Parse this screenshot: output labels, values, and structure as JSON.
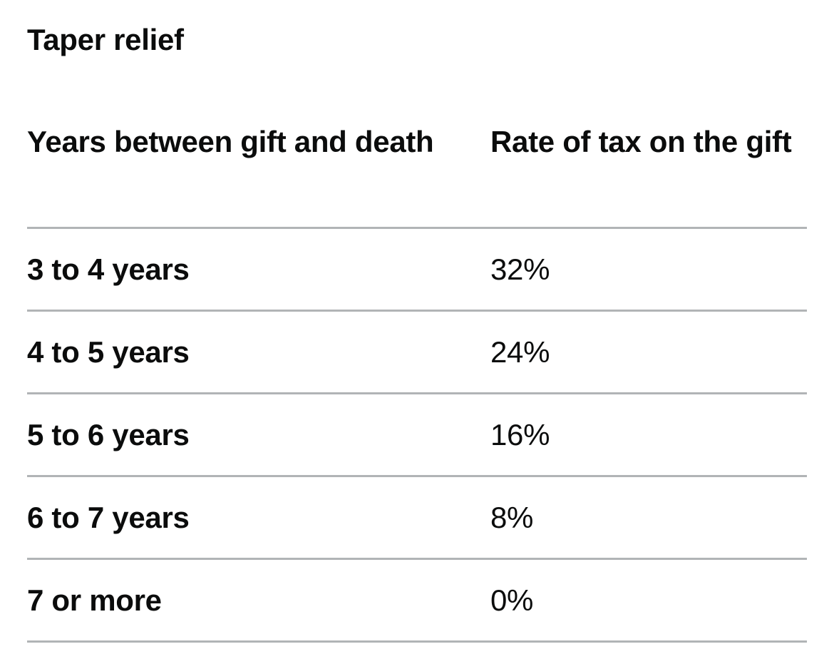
{
  "title": "Taper relief",
  "table": {
    "headers": [
      "Years between gift and death",
      "Rate of tax on the gift"
    ],
    "rows": [
      {
        "period": "3 to 4 years",
        "rate": "32%"
      },
      {
        "period": "4 to 5 years",
        "rate": "24%"
      },
      {
        "period": "5 to 6 years",
        "rate": "16%"
      },
      {
        "period": "6 to 7 years",
        "rate": "8%"
      },
      {
        "period": "7 or more",
        "rate": "0%"
      }
    ]
  },
  "colors": {
    "text": "#0b0c0c",
    "divider": "#b1b4b6",
    "background": "#ffffff"
  }
}
